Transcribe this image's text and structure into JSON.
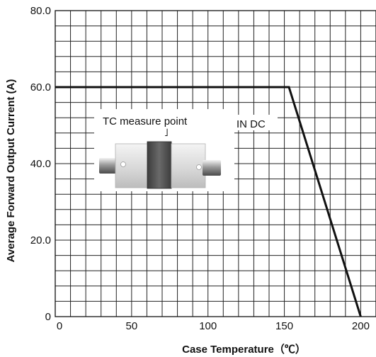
{
  "chart_data": {
    "type": "line",
    "title": "",
    "xlabel": "Case Temperature（℃）",
    "ylabel": "Average Forward Output Current (A)",
    "xlim": [
      0,
      210
    ],
    "ylim": [
      0,
      80
    ],
    "x_tick_labels": [
      "0",
      "50",
      "100",
      "150",
      "200"
    ],
    "x_tick_values": [
      0,
      50,
      100,
      150,
      200
    ],
    "y_tick_labels": [
      "0",
      "20.0",
      "40.0",
      "60.0",
      "80.0"
    ],
    "y_tick_values": [
      0,
      20,
      40,
      60,
      80
    ],
    "grid": true,
    "series": [
      {
        "x": [
          0,
          153,
          200
        ],
        "y": [
          60,
          60,
          0
        ]
      }
    ],
    "annotations": {
      "dc_label": "IN DC",
      "inset_label": "TC measure point",
      "inset_pointer": "˩"
    }
  }
}
